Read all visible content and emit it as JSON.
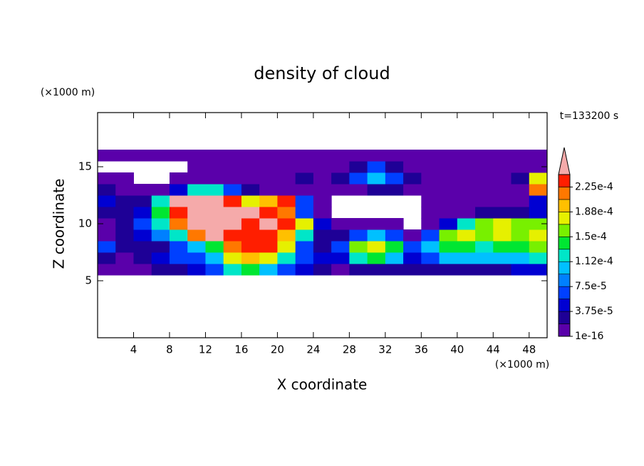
{
  "chart_data": {
    "type": "contour",
    "title": "density of cloud",
    "time_label": "t=133200 s",
    "x_label": "X coordinate",
    "y_label": "Z coordinate",
    "x_unit": "(×1000 m)",
    "y_unit": "(×1000 m)",
    "xlim": [
      0,
      50
    ],
    "ylim": [
      0,
      19.75
    ],
    "xticks": [
      4,
      8,
      12,
      16,
      20,
      24,
      28,
      32,
      36,
      40,
      44,
      48
    ],
    "yticks": [
      5,
      10,
      15
    ],
    "x": [
      1,
      3,
      5,
      7,
      9,
      11,
      13,
      15,
      17,
      19,
      21,
      23,
      25,
      27,
      29,
      31,
      33,
      35,
      37,
      39,
      41,
      43,
      45,
      47,
      49
    ],
    "y": [
      6,
      7,
      8,
      9,
      10,
      11,
      12,
      13,
      14,
      15,
      16
    ],
    "values": [
      [
        1e-16,
        1e-16,
        1e-16,
        2.5e-05,
        2.5e-05,
        4.5e-05,
        6.5e-05,
        0.00012,
        0.00014,
        0.0001,
        6.5e-05,
        4.5e-05,
        2.5e-05,
        1e-16,
        2.5e-05,
        2.5e-05,
        2.5e-05,
        2.5e-05,
        2.5e-05,
        2.5e-05,
        2.5e-05,
        2.5e-05,
        2.5e-05,
        4.5e-05,
        4.5e-05
      ],
      [
        2.5e-05,
        1e-16,
        2.5e-05,
        4.5e-05,
        6.5e-05,
        6.5e-05,
        0.0001,
        0.00018,
        0.0002,
        0.00018,
        0.00012,
        6.5e-05,
        4.5e-05,
        4.5e-05,
        0.00012,
        0.00014,
        0.0001,
        4.5e-05,
        6.5e-05,
        0.0001,
        0.0001,
        0.0001,
        0.0001,
        0.0001,
        0.00012
      ],
      [
        6.5e-05,
        2.5e-05,
        2.5e-05,
        2.5e-05,
        6.5e-05,
        0.0001,
        0.00014,
        0.00022,
        0.000235,
        0.000235,
        0.00018,
        6.5e-05,
        2.5e-05,
        6.5e-05,
        0.00016,
        0.00018,
        0.00014,
        6.5e-05,
        0.0001,
        0.00014,
        0.00014,
        0.00012,
        0.00014,
        0.00014,
        0.00016
      ],
      [
        1e-16,
        2.5e-05,
        4.5e-05,
        8e-05,
        0.00012,
        0.00022,
        0.00026,
        0.000235,
        0.000235,
        0.000235,
        0.0002,
        0.00012,
        2.5e-05,
        2.5e-05,
        6.5e-05,
        0.0001,
        6.5e-05,
        1e-16,
        6.5e-05,
        0.00016,
        0.00018,
        0.00016,
        0.00018,
        0.00016,
        0.00018
      ],
      [
        1e-16,
        2.5e-05,
        6.5e-05,
        0.00012,
        0.00022,
        0.00026,
        0.00026,
        0.00026,
        0.000235,
        0.00026,
        0.000235,
        0.00018,
        4.5e-05,
        1e-16,
        1e-16,
        1e-16,
        1e-16,
        null,
        1e-16,
        4.5e-05,
        0.00012,
        0.00016,
        0.00018,
        0.00016,
        0.00016
      ],
      [
        2.5e-05,
        2.5e-05,
        4.5e-05,
        0.00014,
        0.000235,
        0.00026,
        0.00026,
        0.00026,
        0.00026,
        0.000235,
        0.00022,
        6.5e-05,
        1e-16,
        null,
        null,
        null,
        null,
        null,
        1e-16,
        1e-16,
        1e-16,
        2.5e-05,
        2.5e-05,
        2.5e-05,
        4.5e-05
      ],
      [
        4.5e-05,
        2.5e-05,
        2.5e-05,
        0.00012,
        0.00026,
        0.00026,
        0.00026,
        0.000235,
        0.00018,
        0.0002,
        0.000235,
        6.5e-05,
        1e-16,
        null,
        null,
        null,
        null,
        null,
        1e-16,
        1e-16,
        1e-16,
        1e-16,
        1e-16,
        1e-16,
        4.5e-05
      ],
      [
        2.5e-05,
        1e-16,
        1e-16,
        1e-16,
        4.5e-05,
        0.00012,
        0.00012,
        6.5e-05,
        2.5e-05,
        1e-16,
        1e-16,
        1e-16,
        1e-16,
        1e-16,
        1e-16,
        2.5e-05,
        2.5e-05,
        1e-16,
        1e-16,
        1e-16,
        1e-16,
        1e-16,
        1e-16,
        1e-16,
        0.00022
      ],
      [
        1e-16,
        1e-16,
        null,
        null,
        1e-16,
        1e-16,
        1e-16,
        1e-16,
        1e-16,
        1e-16,
        1e-16,
        2.5e-05,
        1e-16,
        2.5e-05,
        6.5e-05,
        0.0001,
        6.5e-05,
        2.5e-05,
        1e-16,
        1e-16,
        1e-16,
        1e-16,
        1e-16,
        2.5e-05,
        0.00018
      ],
      [
        null,
        null,
        null,
        null,
        null,
        1e-16,
        1e-16,
        1e-16,
        1e-16,
        1e-16,
        1e-16,
        1e-16,
        1e-16,
        1e-16,
        2.5e-05,
        6.5e-05,
        2.5e-05,
        1e-16,
        1e-16,
        1e-16,
        1e-16,
        1e-16,
        1e-16,
        1e-16,
        1e-16
      ],
      [
        1e-16,
        1e-16,
        1e-16,
        1e-16,
        1e-16,
        1e-16,
        1e-16,
        1e-16,
        1e-16,
        1e-16,
        1e-16,
        1e-16,
        1e-16,
        1e-16,
        1e-16,
        1e-16,
        1e-16,
        1e-16,
        1e-16,
        1e-16,
        1e-16,
        1e-16,
        1e-16,
        1e-16,
        1e-16
      ]
    ],
    "colorbar": {
      "levels": [
        1e-16,
        1.875e-05,
        3.75e-05,
        5.625e-05,
        7.5e-05,
        9.375e-05,
        0.0001125,
        0.00013125,
        0.00015,
        0.00016875,
        0.0001875,
        0.00020625,
        0.000225,
        0.00024375
      ],
      "colors": [
        "#5a00aa",
        "#1e0096",
        "#0000d2",
        "#0040ff",
        "#0080ff",
        "#00c0ff",
        "#00e6c8",
        "#00e632",
        "#78f000",
        "#e6f000",
        "#ffc000",
        "#ff7800",
        "#ff1e00"
      ],
      "over_color": "#f5aaaa",
      "ticks": [
        1e-16,
        {
          "value": 3.75e-05,
          "label": "3.75e-5"
        },
        {
          "value": 7.5e-05,
          "label": "7.5e-5"
        },
        {
          "value": 0.0001125,
          "label": "1.12e-4"
        },
        {
          "value": 0.00015,
          "label": "1.5e-4"
        },
        {
          "value": 0.0001875,
          "label": "1.88e-4"
        },
        {
          "value": 0.000225,
          "label": "2.25e-4"
        }
      ]
    }
  }
}
